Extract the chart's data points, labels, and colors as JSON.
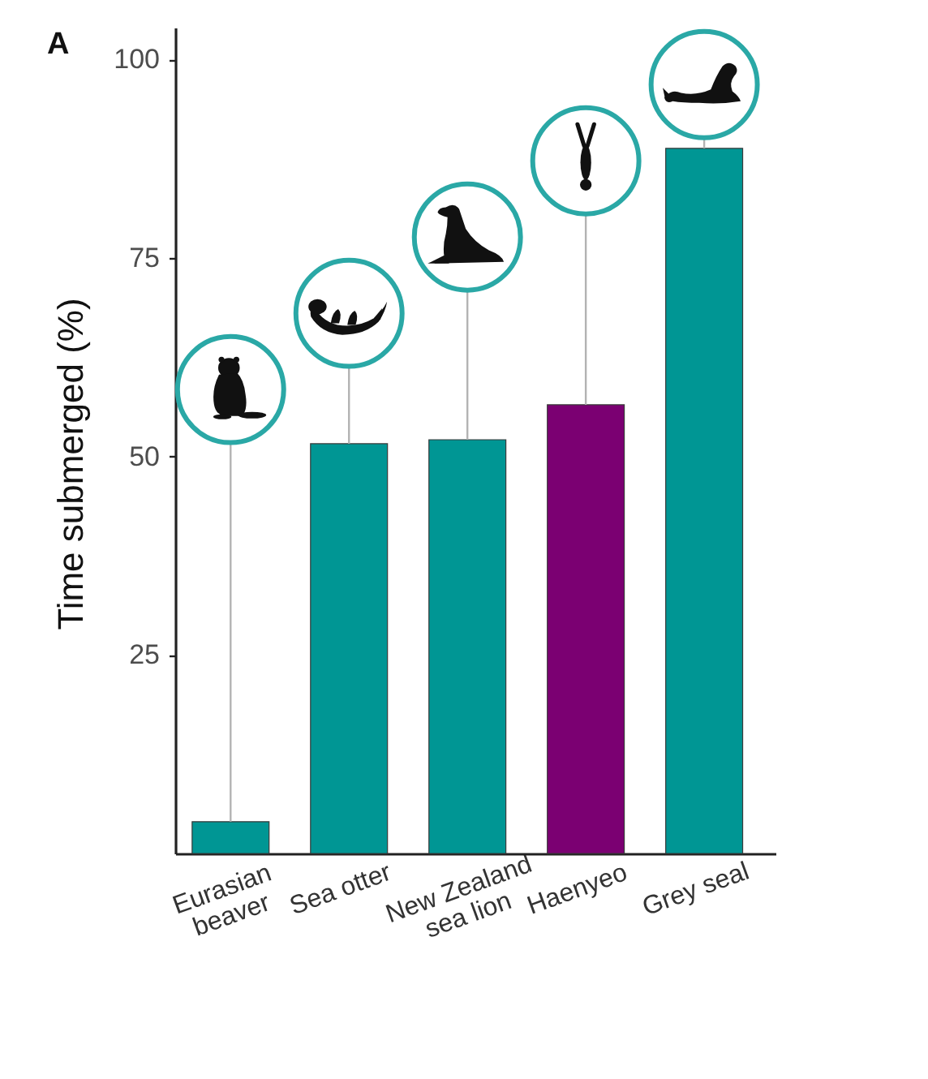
{
  "chart_data": {
    "type": "bar",
    "categories": [
      "Eurasian beaver",
      "Sea otter",
      "New Zealand sea lion",
      "Haenyeo",
      "Grey seal"
    ],
    "values": [
      4,
      51.6,
      52.1,
      56.5,
      88.8
    ],
    "colors": [
      "#009694",
      "#009694",
      "#009694",
      "#7b0072",
      "#009694"
    ],
    "ylabel": "Time submerged (%)",
    "ylim": [
      0,
      104
    ],
    "yticks": [
      25,
      50,
      75,
      100
    ],
    "annotations": [
      "A"
    ]
  }
}
